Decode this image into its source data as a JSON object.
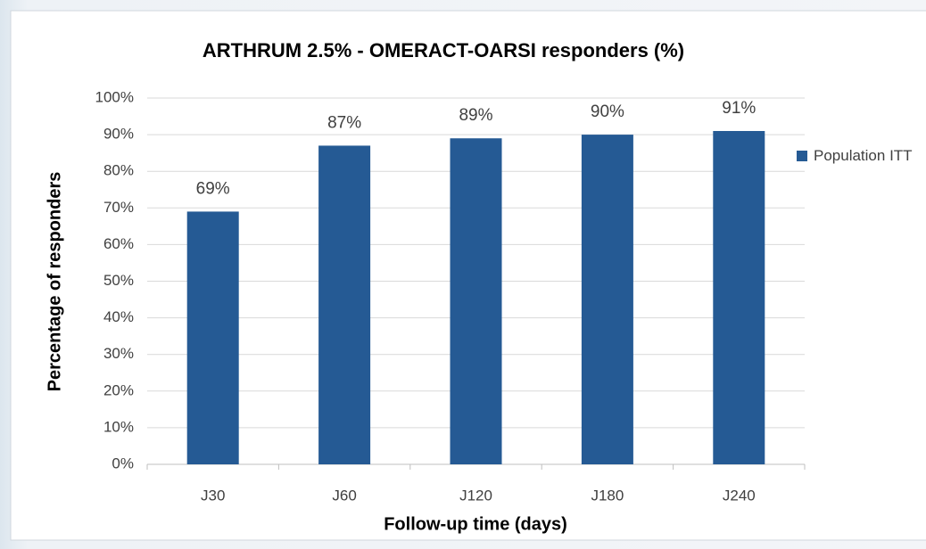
{
  "chart_data": {
    "type": "bar",
    "title": "ARTHRUM 2.5% - OMERACT-OARSI responders (%)",
    "x_label": "Follow-up time (days)",
    "y_label": "Percentage of responders",
    "categories": [
      "J30",
      "J60",
      "J120",
      "J180",
      "J240"
    ],
    "series": [
      {
        "name": "Population ITT",
        "color": "#255a94",
        "values": [
          69,
          87,
          89,
          90,
          91
        ],
        "value_labels": [
          "69%",
          "87%",
          "89%",
          "90%",
          "91%"
        ]
      }
    ],
    "ylim": [
      0,
      100
    ],
    "yticks": [
      {
        "value": 0,
        "label": "0%"
      },
      {
        "value": 10,
        "label": "10%"
      },
      {
        "value": 20,
        "label": "20%"
      },
      {
        "value": 30,
        "label": "30%"
      },
      {
        "value": 40,
        "label": "40%"
      },
      {
        "value": 50,
        "label": "50%"
      },
      {
        "value": 60,
        "label": "60%"
      },
      {
        "value": 70,
        "label": "70%"
      },
      {
        "value": 80,
        "label": "80%"
      },
      {
        "value": 90,
        "label": "90%"
      },
      {
        "value": 100,
        "label": "100%"
      }
    ],
    "grid": true,
    "legend": "right"
  }
}
